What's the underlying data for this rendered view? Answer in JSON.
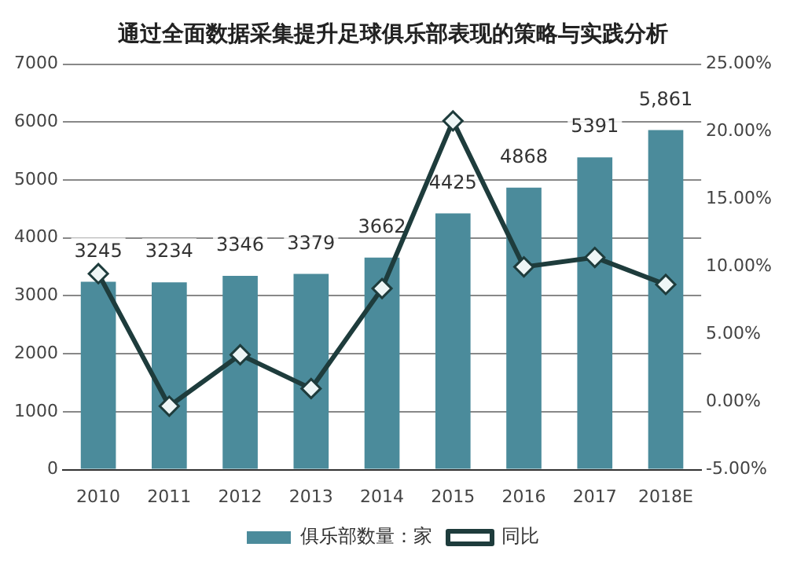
{
  "chart_data": {
    "type": "bar",
    "title": "通过全面数据采集提升足球俱乐部表现的策略与实践分析",
    "categories": [
      "2010",
      "2011",
      "2012",
      "2013",
      "2014",
      "2015",
      "2016",
      "2017",
      "2018E"
    ],
    "series": [
      {
        "name": "俱乐部数量：家",
        "color": "#4b8b9b",
        "values": [
          3245,
          3234,
          3346,
          3379,
          3662,
          4425,
          4868,
          5391,
          5861
        ],
        "value_labels": [
          "3245",
          "3234",
          "3346",
          "3379",
          "3662",
          "4425",
          "4868",
          "5391",
          "5,861"
        ]
      },
      {
        "name": "同比",
        "type": "line",
        "axis": "y2",
        "color": "#1e3c3c",
        "marker": "diamond",
        "values": [
          9.5,
          -0.3,
          3.5,
          1.0,
          8.4,
          20.8,
          10.0,
          10.7,
          8.7
        ]
      }
    ],
    "ylim": [
      0,
      7000
    ],
    "yticks": [
      0,
      1000,
      2000,
      3000,
      4000,
      5000,
      6000,
      7000
    ],
    "y2lim": [
      -5,
      25
    ],
    "y2ticks": [
      {
        "value": -5,
        "label": "-5.00%"
      },
      {
        "value": 0,
        "label": "0.00%"
      },
      {
        "value": 5,
        "label": "5.00%"
      },
      {
        "value": 10,
        "label": "10.00%"
      },
      {
        "value": 15,
        "label": "15.00%"
      },
      {
        "value": 20,
        "label": "20.00%"
      },
      {
        "value": 25,
        "label": "25.00%"
      }
    ],
    "grid": "y",
    "legend": "bottom"
  }
}
